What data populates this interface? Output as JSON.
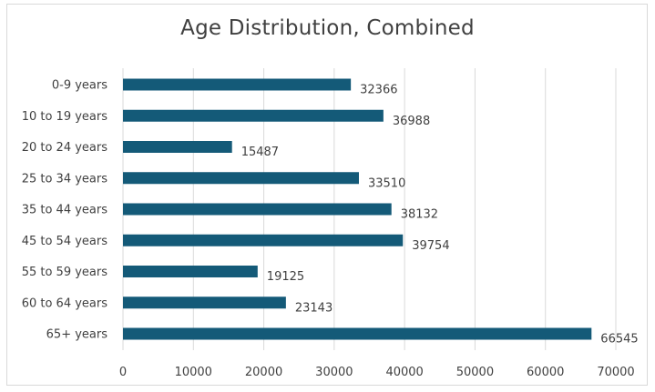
{
  "chart_data": {
    "type": "bar",
    "orientation": "horizontal",
    "title": "Age Distribution, Combined",
    "xlabel": "",
    "ylabel": "",
    "categories": [
      "0-9 years",
      "10 to 19 years",
      "20 to 24 years",
      "25 to 34 years",
      "35 to 44 years",
      "45 to 54 years",
      "55 to 59 years",
      "60 to 64 years",
      "65+ years"
    ],
    "values": [
      32366,
      36988,
      15487,
      33510,
      38132,
      39754,
      19125,
      23143,
      66545
    ],
    "xlim": [
      0,
      70000
    ],
    "xticks": [
      0,
      10000,
      20000,
      30000,
      40000,
      50000,
      60000,
      70000
    ],
    "grid": "vertical",
    "legend": "none",
    "data_labels": true,
    "bar_color": "#145a78",
    "grid_color": "#d9d9d9"
  }
}
